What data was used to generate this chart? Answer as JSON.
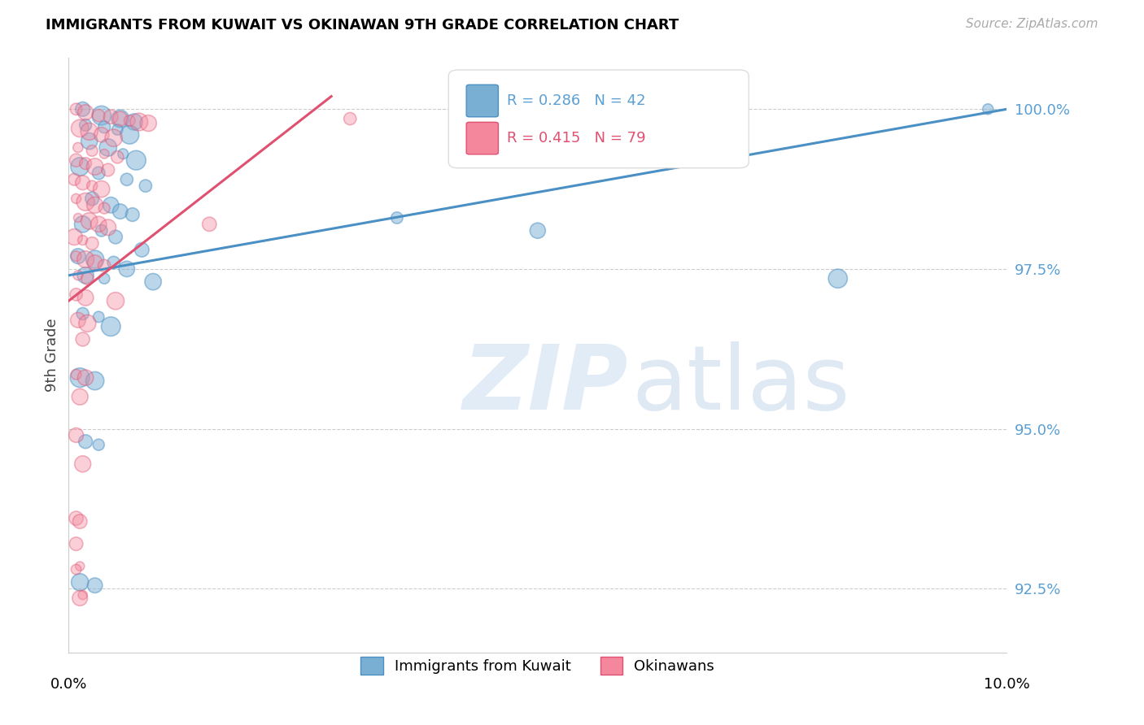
{
  "title": "IMMIGRANTS FROM KUWAIT VS OKINAWAN 9TH GRADE CORRELATION CHART",
  "source": "Source: ZipAtlas.com",
  "ylabel": "9th Grade",
  "y_ticks": [
    92.5,
    95.0,
    97.5,
    100.0
  ],
  "y_tick_labels": [
    "92.5%",
    "95.0%",
    "97.5%",
    "100.0%"
  ],
  "x_lim": [
    0.0,
    10.0
  ],
  "y_lim": [
    91.5,
    100.8
  ],
  "legend_label1": "Immigrants from Kuwait",
  "legend_label2": "Okinawans",
  "blue_color": "#7aafd4",
  "pink_color": "#f4879c",
  "trendline_blue": "#4a90c4",
  "trendline_pink": "#e05070",
  "tick_color": "#5a9fd4",
  "pink_legend_color": "#e05070",
  "grid_color": "#cccccc",
  "background_color": "#ffffff",
  "blue_scatter": [
    [
      0.15,
      100.0
    ],
    [
      0.35,
      99.9
    ],
    [
      0.55,
      99.85
    ],
    [
      0.7,
      99.8
    ],
    [
      0.18,
      99.75
    ],
    [
      0.38,
      99.72
    ],
    [
      0.52,
      99.68
    ],
    [
      0.65,
      99.6
    ],
    [
      0.22,
      99.5
    ],
    [
      0.42,
      99.4
    ],
    [
      0.58,
      99.3
    ],
    [
      0.72,
      99.2
    ],
    [
      0.12,
      99.1
    ],
    [
      0.32,
      99.0
    ],
    [
      0.62,
      98.9
    ],
    [
      0.82,
      98.8
    ],
    [
      0.25,
      98.6
    ],
    [
      0.45,
      98.5
    ],
    [
      0.55,
      98.4
    ],
    [
      0.68,
      98.35
    ],
    [
      0.15,
      98.2
    ],
    [
      0.35,
      98.1
    ],
    [
      0.5,
      98.0
    ],
    [
      0.78,
      97.8
    ],
    [
      0.1,
      97.7
    ],
    [
      0.28,
      97.65
    ],
    [
      0.48,
      97.6
    ],
    [
      0.62,
      97.5
    ],
    [
      0.18,
      97.4
    ],
    [
      0.38,
      97.35
    ],
    [
      0.9,
      97.3
    ],
    [
      0.15,
      96.8
    ],
    [
      0.32,
      96.75
    ],
    [
      0.45,
      96.6
    ],
    [
      0.12,
      95.8
    ],
    [
      0.28,
      95.75
    ],
    [
      0.18,
      94.8
    ],
    [
      0.32,
      94.75
    ],
    [
      0.12,
      92.6
    ],
    [
      0.28,
      92.55
    ],
    [
      3.5,
      98.3
    ],
    [
      5.0,
      98.1
    ],
    [
      9.8,
      100.0
    ],
    [
      8.2,
      97.35
    ]
  ],
  "pink_scatter": [
    [
      0.08,
      100.0
    ],
    [
      0.18,
      99.95
    ],
    [
      0.32,
      99.9
    ],
    [
      0.45,
      99.88
    ],
    [
      0.55,
      99.85
    ],
    [
      0.65,
      99.82
    ],
    [
      0.75,
      99.8
    ],
    [
      0.85,
      99.78
    ],
    [
      0.12,
      99.7
    ],
    [
      0.22,
      99.65
    ],
    [
      0.35,
      99.6
    ],
    [
      0.48,
      99.55
    ],
    [
      0.1,
      99.4
    ],
    [
      0.25,
      99.35
    ],
    [
      0.38,
      99.3
    ],
    [
      0.52,
      99.25
    ],
    [
      0.08,
      99.2
    ],
    [
      0.18,
      99.15
    ],
    [
      0.28,
      99.1
    ],
    [
      0.42,
      99.05
    ],
    [
      0.06,
      98.9
    ],
    [
      0.15,
      98.85
    ],
    [
      0.25,
      98.8
    ],
    [
      0.35,
      98.75
    ],
    [
      0.08,
      98.6
    ],
    [
      0.18,
      98.55
    ],
    [
      0.28,
      98.5
    ],
    [
      0.38,
      98.45
    ],
    [
      0.1,
      98.3
    ],
    [
      0.22,
      98.25
    ],
    [
      0.32,
      98.2
    ],
    [
      0.42,
      98.15
    ],
    [
      0.06,
      98.0
    ],
    [
      0.15,
      97.95
    ],
    [
      0.25,
      97.9
    ],
    [
      0.08,
      97.7
    ],
    [
      0.18,
      97.65
    ],
    [
      0.28,
      97.6
    ],
    [
      0.38,
      97.55
    ],
    [
      0.1,
      97.4
    ],
    [
      0.2,
      97.35
    ],
    [
      0.08,
      97.1
    ],
    [
      0.18,
      97.05
    ],
    [
      0.1,
      96.7
    ],
    [
      0.2,
      96.65
    ],
    [
      0.15,
      96.4
    ],
    [
      0.08,
      95.85
    ],
    [
      0.18,
      95.8
    ],
    [
      0.12,
      95.5
    ],
    [
      0.08,
      94.9
    ],
    [
      0.15,
      94.45
    ],
    [
      0.08,
      93.6
    ],
    [
      0.12,
      93.55
    ],
    [
      0.08,
      93.2
    ],
    [
      0.12,
      92.85
    ],
    [
      0.08,
      92.8
    ],
    [
      0.15,
      92.4
    ],
    [
      0.12,
      92.35
    ],
    [
      3.0,
      99.85
    ],
    [
      1.5,
      98.2
    ],
    [
      0.5,
      97.0
    ]
  ],
  "blue_trend_x": [
    0.0,
    10.0
  ],
  "blue_trend_y": [
    97.4,
    100.0
  ],
  "pink_trend_x": [
    0.0,
    2.8
  ],
  "pink_trend_y": [
    97.0,
    100.2
  ]
}
